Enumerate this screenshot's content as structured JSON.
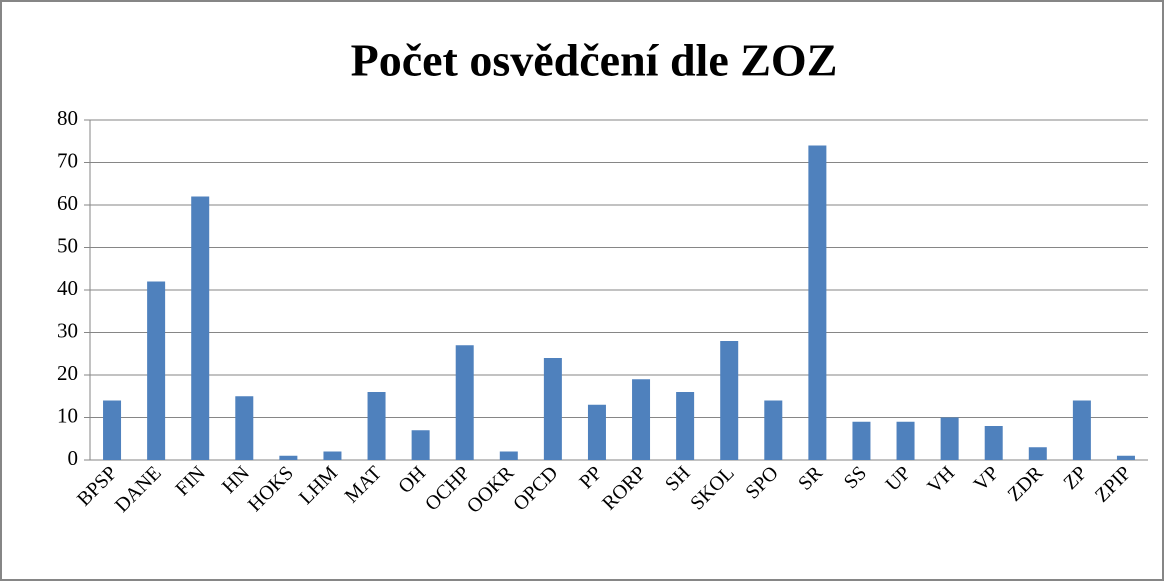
{
  "chart_data": {
    "type": "bar",
    "title": "Počet osvědčení dle ZOZ",
    "categories": [
      "BPSP",
      "DANE",
      "FIN",
      "HN",
      "HOKS",
      "LHM",
      "MAT",
      "OH",
      "OCHP",
      "OOKR",
      "OPCD",
      "PP",
      "RORP",
      "SH",
      "SKOL",
      "SPO",
      "SR",
      "SS",
      "UP",
      "VH",
      "VP",
      "ZDR",
      "ZP",
      "ZPIP"
    ],
    "values": [
      14,
      42,
      62,
      15,
      1,
      2,
      16,
      7,
      27,
      2,
      24,
      13,
      19,
      16,
      28,
      14,
      74,
      9,
      9,
      10,
      8,
      3,
      14,
      1
    ],
    "color": "#4f81bd",
    "ylim": [
      0,
      80
    ],
    "yticks": [
      0,
      10,
      20,
      30,
      40,
      50,
      60,
      70,
      80
    ],
    "grid": true
  }
}
